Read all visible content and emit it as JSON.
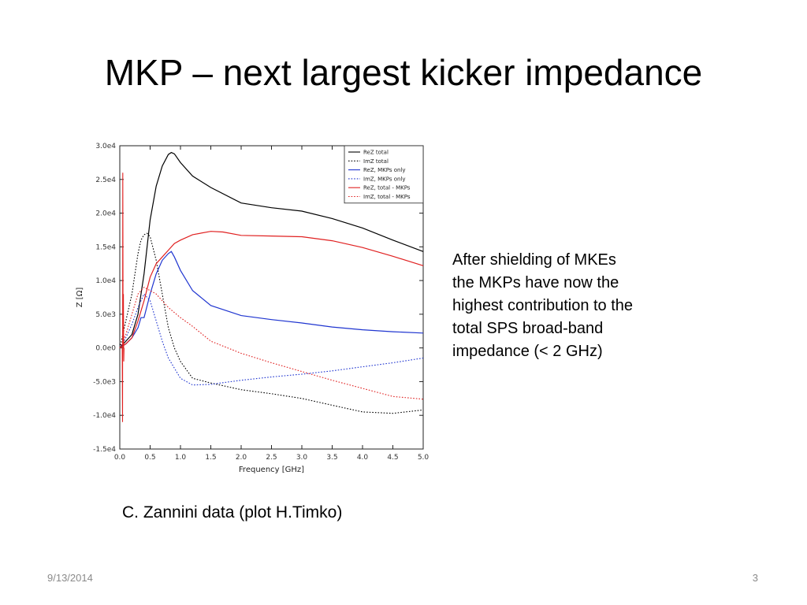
{
  "slide": {
    "title": "MKP – next largest kicker impedance",
    "note_lines": [
      "After shielding of MKEs",
      "the MKPs have now the",
      "highest contribution to the",
      "total SPS broad-band",
      "impedance (< 2 GHz)"
    ],
    "caption": "C. Zannini data (plot H.Timko)",
    "date": "9/13/2014",
    "page_number": "3"
  },
  "chart_data": {
    "type": "line",
    "title": "",
    "xlabel": "Frequency [GHz]",
    "ylabel": "Z [Ω]",
    "xlim": [
      0,
      5
    ],
    "ylim": [
      -15000,
      30000
    ],
    "xticks": [
      0,
      0.5,
      1,
      1.5,
      2,
      2.5,
      3,
      3.5,
      4,
      4.5,
      5
    ],
    "xtick_labels": [
      "0.0",
      "0.5",
      "1.0",
      "1.5",
      "2.0",
      "2.5",
      "3.0",
      "3.5",
      "4.0",
      "4.5",
      "5.0"
    ],
    "yticks": [
      -15000,
      -10000,
      -5000,
      0,
      5000,
      10000,
      15000,
      20000,
      25000,
      30000
    ],
    "ytick_labels": [
      "-1.5e4",
      "-1.0e4",
      "-5.0e3",
      "0.0e0",
      "5.0e3",
      "1.0e4",
      "1.5e4",
      "2.0e4",
      "2.5e4",
      "3.0e4"
    ],
    "grid": false,
    "legend_position": "top-right",
    "series": [
      {
        "name": "ReZ total",
        "color": "#000000",
        "dash": "solid",
        "x": [
          0,
          0.05,
          0.1,
          0.2,
          0.3,
          0.4,
          0.5,
          0.6,
          0.7,
          0.8,
          0.85,
          0.9,
          1.0,
          1.2,
          1.5,
          2.0,
          2.5,
          3.0,
          3.5,
          4.0,
          4.5,
          5.0
        ],
        "y": [
          0,
          500,
          1000,
          2000,
          5000,
          11000,
          19000,
          24000,
          27000,
          28700,
          29000,
          28800,
          27500,
          25500,
          23800,
          21500,
          20800,
          20300,
          19200,
          17800,
          16000,
          14300
        ]
      },
      {
        "name": "ImZ total",
        "color": "#000000",
        "dash": "dotted",
        "x": [
          0,
          0.05,
          0.1,
          0.2,
          0.3,
          0.35,
          0.4,
          0.45,
          0.5,
          0.6,
          0.7,
          0.8,
          0.9,
          1.0,
          1.2,
          1.5,
          2.0,
          2.5,
          3.0,
          3.5,
          4.0,
          4.5,
          5.0
        ],
        "y": [
          0,
          2000,
          4000,
          8000,
          14000,
          16000,
          16800,
          17000,
          16500,
          13000,
          8000,
          3000,
          0,
          -2000,
          -4500,
          -5200,
          -6200,
          -6800,
          -7500,
          -8500,
          -9500,
          -9700,
          -9200
        ]
      },
      {
        "name": "ReZ, MKPs only",
        "color": "#1f35d0",
        "dash": "solid",
        "x": [
          0,
          0.05,
          0.1,
          0.2,
          0.3,
          0.35,
          0.4,
          0.5,
          0.6,
          0.7,
          0.8,
          0.85,
          0.9,
          1.0,
          1.2,
          1.5,
          2.0,
          2.5,
          3.0,
          3.5,
          4.0,
          4.5,
          5.0
        ],
        "y": [
          0,
          300,
          600,
          1500,
          3000,
          4500,
          4500,
          8000,
          11000,
          13000,
          14000,
          14300,
          13500,
          11500,
          8500,
          6300,
          4800,
          4200,
          3700,
          3100,
          2700,
          2400,
          2200
        ]
      },
      {
        "name": "ImZ, MKPs only",
        "color": "#1f35d0",
        "dash": "dotted",
        "x": [
          0,
          0.1,
          0.2,
          0.3,
          0.4,
          0.5,
          0.6,
          0.7,
          0.8,
          1.0,
          1.2,
          1.5,
          2.0,
          2.5,
          3.0,
          3.5,
          4.0,
          4.5,
          5.0
        ],
        "y": [
          0,
          1500,
          3500,
          6000,
          8000,
          7000,
          4000,
          1000,
          -1500,
          -4500,
          -5500,
          -5400,
          -4800,
          -4300,
          -3900,
          -3400,
          -2800,
          -2200,
          -1500
        ]
      },
      {
        "name": "ReZ, total - MKPs",
        "color": "#e02020",
        "dash": "solid",
        "x": [
          0,
          0.05,
          0.1,
          0.2,
          0.3,
          0.4,
          0.5,
          0.6,
          0.7,
          0.8,
          0.9,
          1.0,
          1.2,
          1.5,
          1.7,
          2.0,
          2.5,
          3.0,
          3.5,
          4.0,
          4.5,
          5.0
        ],
        "y": [
          0,
          300,
          600,
          1500,
          4000,
          7000,
          10500,
          12500,
          13500,
          14500,
          15500,
          16000,
          16800,
          17300,
          17200,
          16700,
          16600,
          16500,
          15900,
          14900,
          13600,
          12200
        ]
      },
      {
        "name": "ImZ, total - MKPs",
        "color": "#e02020",
        "dash": "dotted",
        "x": [
          0,
          0.1,
          0.2,
          0.3,
          0.4,
          0.5,
          0.6,
          0.7,
          0.8,
          1.0,
          1.2,
          1.5,
          2.0,
          2.5,
          3.0,
          3.5,
          4.0,
          4.5,
          5.0
        ],
        "y": [
          0,
          2000,
          5000,
          8000,
          9000,
          8500,
          8000,
          7000,
          6000,
          4500,
          3200,
          1000,
          -800,
          -2200,
          -3500,
          -4800,
          -6000,
          -7200,
          -7600
        ]
      }
    ],
    "spike": {
      "color": "#e02020",
      "x": [
        0.04,
        0.045,
        0.05,
        0.055,
        0.06,
        0.065,
        0.07
      ],
      "y": [
        0,
        -11000,
        26000,
        0,
        8000,
        -2000,
        0
      ]
    }
  }
}
